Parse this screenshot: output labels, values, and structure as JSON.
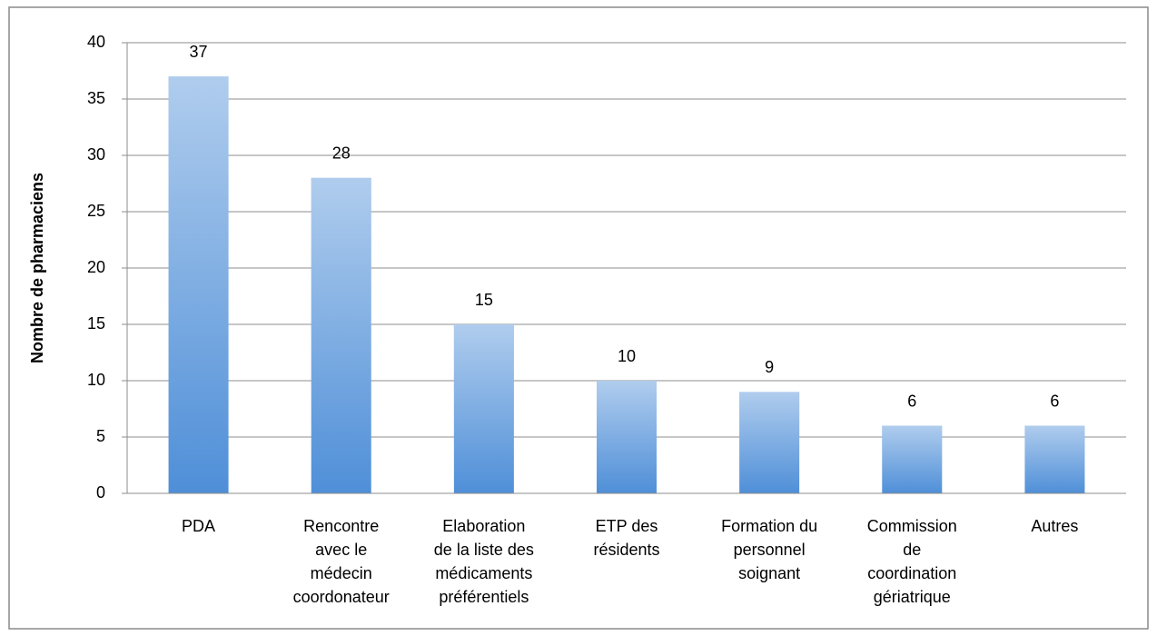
{
  "chart_data": {
    "type": "bar",
    "y_label": "Nombre de pharmaciens",
    "categories": [
      "PDA",
      "Rencontre\navec le\nmédecin\ncoordonateur",
      "Elaboration\nde la liste des\nmédicaments\npréférentiels",
      "ETP des\nrésidents",
      "Formation du\npersonnel\nsoignant",
      "Commission\nde\ncoordination\ngériatrique",
      "Autres"
    ],
    "values": [
      37,
      28,
      15,
      10,
      9,
      6,
      6
    ],
    "color": "#4f8fd8",
    "ylim": [
      0,
      40
    ],
    "yticks": [
      0,
      5,
      10,
      15,
      20,
      25,
      30,
      35,
      40
    ],
    "grid": true
  }
}
